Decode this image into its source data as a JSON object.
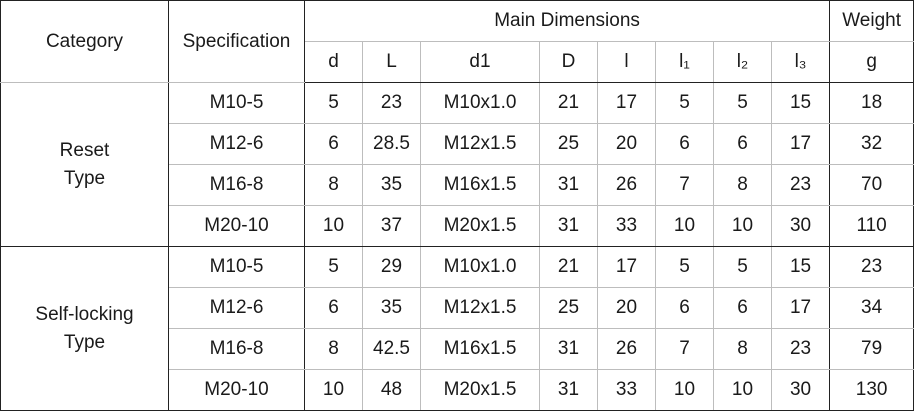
{
  "headers": {
    "category": "Category",
    "specification": "Specification",
    "main_dimensions": "Main Dimensions",
    "weight": "Weight",
    "dims": [
      "d",
      "L",
      "d1",
      "D",
      "l",
      "l₁",
      "l₂",
      "l₃"
    ],
    "weight_unit": "g"
  },
  "groups": [
    {
      "category_line1": "Reset",
      "category_line2": "Type",
      "rows": [
        {
          "spec": "M10-5",
          "values": [
            "5",
            "23",
            "M10x1.0",
            "21",
            "17",
            "5",
            "5",
            "15"
          ],
          "weight": "18"
        },
        {
          "spec": "M12-6",
          "values": [
            "6",
            "28.5",
            "M12x1.5",
            "25",
            "20",
            "6",
            "6",
            "17"
          ],
          "weight": "32"
        },
        {
          "spec": "M16-8",
          "values": [
            "8",
            "35",
            "M16x1.5",
            "31",
            "26",
            "7",
            "8",
            "23"
          ],
          "weight": "70"
        },
        {
          "spec": "M20-10",
          "values": [
            "10",
            "37",
            "M20x1.5",
            "31",
            "33",
            "10",
            "10",
            "30"
          ],
          "weight": "110"
        }
      ]
    },
    {
      "category_line1": "Self-locking",
      "category_line2": "Type",
      "rows": [
        {
          "spec": "M10-5",
          "values": [
            "5",
            "29",
            "M10x1.0",
            "21",
            "17",
            "5",
            "5",
            "15"
          ],
          "weight": "23"
        },
        {
          "spec": "M12-6",
          "values": [
            "6",
            "35",
            "M12x1.5",
            "25",
            "20",
            "6",
            "6",
            "17"
          ],
          "weight": "34"
        },
        {
          "spec": "M16-8",
          "values": [
            "8",
            "42.5",
            "M16x1.5",
            "31",
            "26",
            "7",
            "8",
            "23"
          ],
          "weight": "79"
        },
        {
          "spec": "M20-10",
          "values": [
            "10",
            "48",
            "M20x1.5",
            "31",
            "33",
            "10",
            "10",
            "30"
          ],
          "weight": "130"
        }
      ]
    }
  ]
}
